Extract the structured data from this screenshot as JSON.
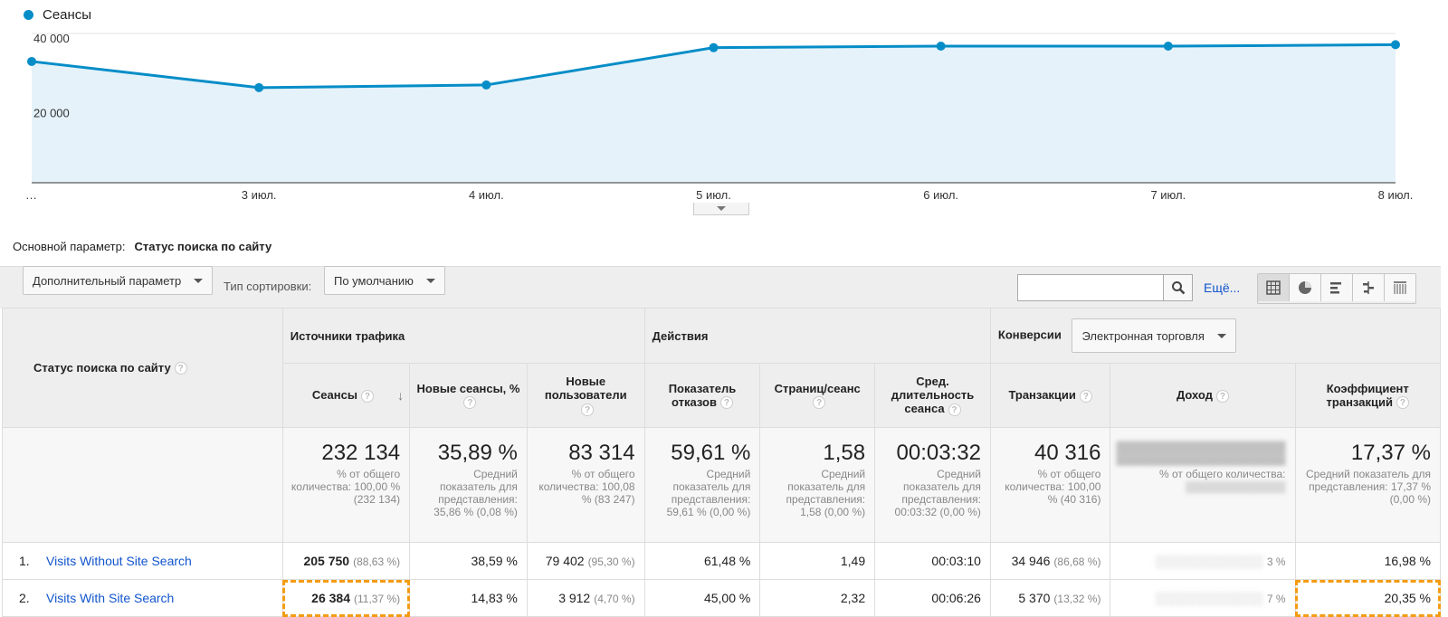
{
  "chart_data": {
    "type": "area",
    "legend": "Сеансы",
    "x": [
      "…",
      "3 июл.",
      "4 июл.",
      "5 июл.",
      "6 июл.",
      "7 июл.",
      "8 июл."
    ],
    "series": [
      {
        "name": "Сеансы",
        "values": [
          32500,
          25500,
          26200,
          36200,
          36600,
          36600,
          37000
        ]
      }
    ],
    "yticks": [
      "40 000",
      "20 000"
    ],
    "ylim": [
      0,
      40000
    ],
    "color": "#058dc7",
    "fill": "#e5f2fa"
  },
  "primary_dimension": {
    "label": "Основной параметр:",
    "value": "Статус поиска по сайту"
  },
  "toolbar": {
    "secondary_dim": "Дополнительный параметр",
    "sort_label": "Тип сортировки:",
    "sort_value": "По умолчанию",
    "search_value": "",
    "more": "Ещё..."
  },
  "table": {
    "dim_header": "Статус поиска по сайту",
    "groups": {
      "traffic": "Источники трафика",
      "actions": "Действия",
      "conversions": "Конверсии",
      "conversions_select": "Электронная торговля"
    },
    "columns": {
      "sessions": "Сеансы",
      "new_sessions": "Новые сеансы, %",
      "new_users": "Новые пользователи",
      "bounce": "Показатель отказов",
      "pages": "Страниц/сеанс",
      "duration": "Сред. длительность сеанса",
      "transactions": "Транзакции",
      "revenue": "Доход",
      "conv_rate": "Коэффициент транзакций"
    },
    "totals": {
      "sessions": {
        "value": "232 134",
        "sub": "% от общего количества: 100,00 % (232 134)"
      },
      "new_sessions": {
        "value": "35,89 %",
        "sub": "Средний показатель для представления: 35,86 % (0,08 %)"
      },
      "new_users": {
        "value": "83 314",
        "sub": "% от общего количества: 100,08 % (83 247)"
      },
      "bounce": {
        "value": "59,61 %",
        "sub": "Средний показатель для представления: 59,61 % (0,00 %)"
      },
      "pages": {
        "value": "1,58",
        "sub": "Средний показатель для представления: 1,58 (0,00 %)"
      },
      "duration": {
        "value": "00:03:32",
        "sub": "Средний показатель для представления: 00:03:32 (0,00 %)"
      },
      "transactions": {
        "value": "40 316",
        "sub": "% от общего количества: 100,00 % (40 316)"
      },
      "revenue": {
        "value": "",
        "sub": "% от общего количества:"
      },
      "conv_rate": {
        "value": "17,37 %",
        "sub": "Средний показатель для представления: 17,37 % (0,00 %)"
      }
    },
    "rows": [
      {
        "idx": "1.",
        "name": "Visits Without Site Search",
        "sessions": "205 750",
        "sessions_pct": "(88,63 %)",
        "new_sessions": "38,59 %",
        "new_users": "79 402",
        "new_users_pct": "(95,30 %)",
        "bounce": "61,48 %",
        "pages": "1,49",
        "duration": "00:03:10",
        "transactions": "34 946",
        "transactions_pct": "(86,68 %)",
        "revenue_pct": "3 %",
        "conv_rate": "16,98 %"
      },
      {
        "idx": "2.",
        "name": "Visits With Site Search",
        "sessions": "26 384",
        "sessions_pct": "(11,37 %)",
        "new_sessions": "14,83 %",
        "new_users": "3 912",
        "new_users_pct": "(4,70 %)",
        "bounce": "45,00 %",
        "pages": "2,32",
        "duration": "00:06:26",
        "transactions": "5 370",
        "transactions_pct": "(13,32 %)",
        "revenue_pct": "7 %",
        "conv_rate": "20,35 %"
      }
    ]
  }
}
